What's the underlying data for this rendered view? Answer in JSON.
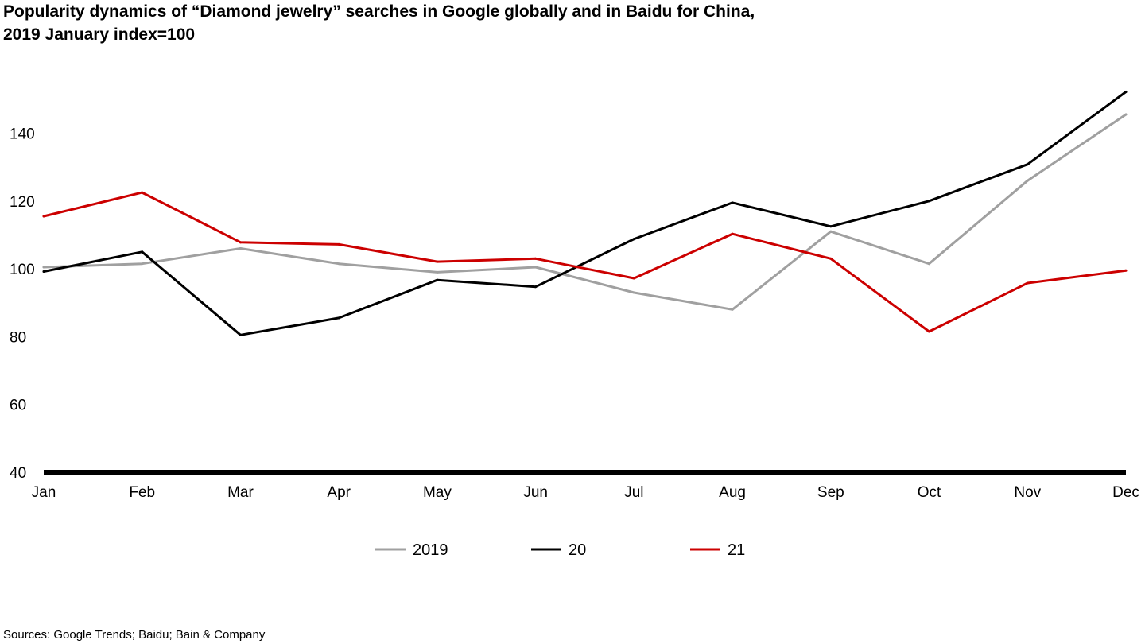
{
  "chart_data": {
    "type": "line",
    "title": "Popularity dynamics of “Diamond jewelry” searches in Google globally and in Baidu for China,",
    "subtitle": "2019 January index=100",
    "categories": [
      "Jan",
      "Feb",
      "Mar",
      "Apr",
      "May",
      "Jun",
      "Jul",
      "Aug",
      "Sep",
      "Oct",
      "Nov",
      "Dec"
    ],
    "yticks": [
      40,
      60,
      80,
      100,
      120,
      140
    ],
    "ylim": [
      40,
      155
    ],
    "grid": false,
    "legend_position": "bottom",
    "series": [
      {
        "name": "2019",
        "color": "#a0a0a0",
        "values": [
          100.5,
          101.5,
          106,
          101.5,
          99,
          100.5,
          93,
          88,
          111,
          101.5,
          126,
          145.5
        ]
      },
      {
        "name": "20",
        "color": "#000000",
        "values": [
          99.2,
          105,
          80.5,
          85.5,
          96.7,
          94.7,
          108.8,
          119.5,
          112.5,
          120,
          130.8,
          152.2
        ]
      },
      {
        "name": "21",
        "color": "#cc0000",
        "values": [
          115.5,
          122.5,
          107.8,
          107.2,
          102.1,
          103,
          97.2,
          110.3,
          103,
          81.5,
          95.8,
          99.5
        ]
      }
    ]
  },
  "footer": {
    "source": "Sources: Google Trends; Baidu; Bain & Company"
  }
}
